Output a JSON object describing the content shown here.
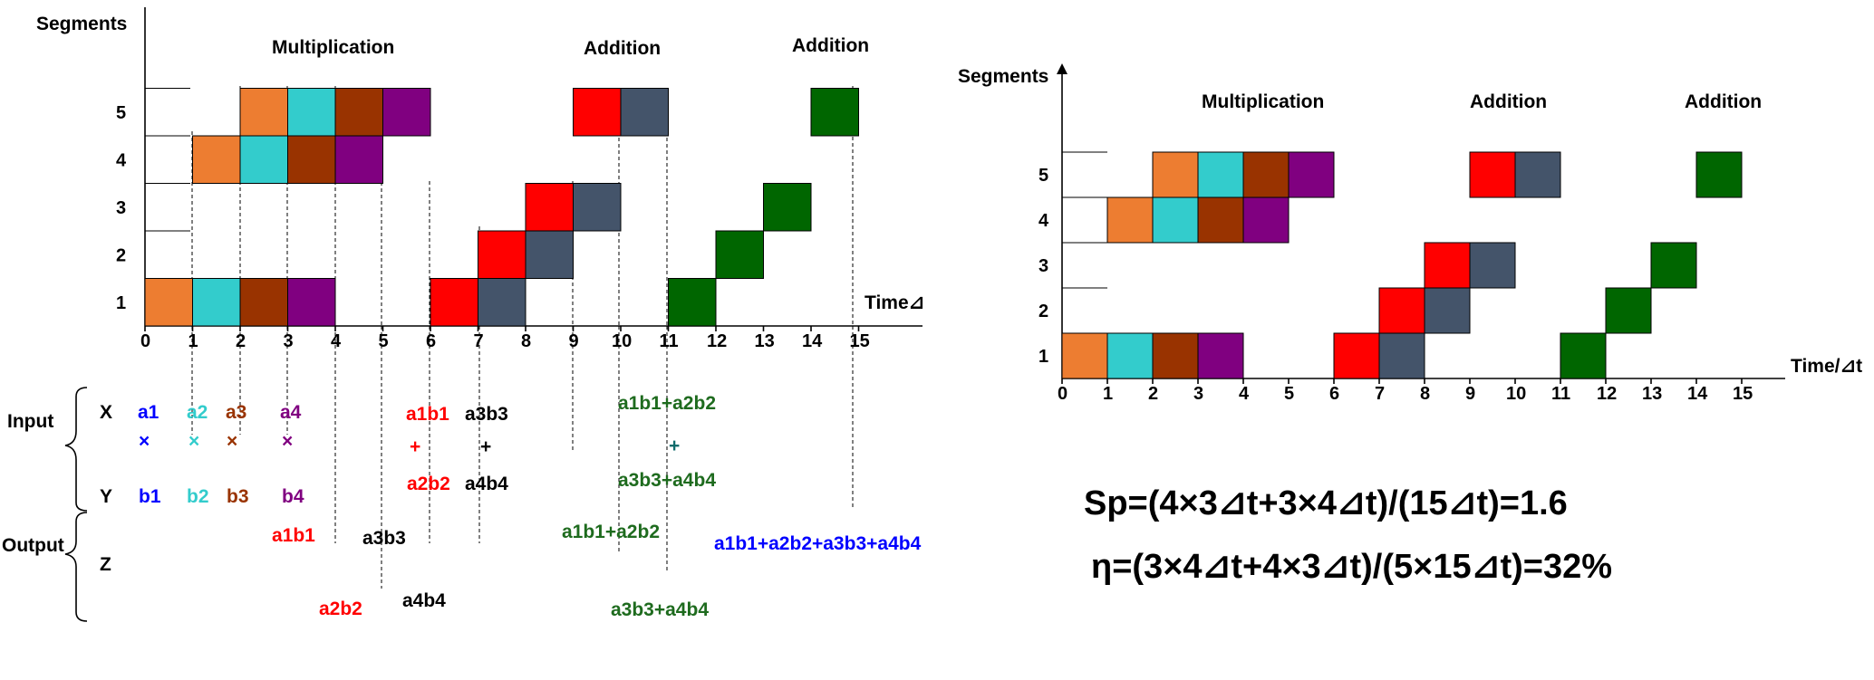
{
  "colors": {
    "orange": "#ED7D31",
    "cyan": "#33CCCC",
    "brown": "#993300",
    "purple": "#800080",
    "red": "#FF0000",
    "slate": "#44546A",
    "green": "#006600",
    "blue": "#0000FF",
    "input_green": "#1E6B1E"
  },
  "left": {
    "y_axis_label": "Segments",
    "x_axis_label": "Time⊿",
    "phase_labels": [
      "Multiplication",
      "Addition",
      "Addition"
    ],
    "segments": [
      "1",
      "2",
      "3",
      "4",
      "5"
    ],
    "times": [
      "0",
      "1",
      "2",
      "3",
      "4",
      "5",
      "6",
      "7",
      "8",
      "9",
      "10",
      "11",
      "12",
      "13",
      "14",
      "15"
    ],
    "cells": [
      {
        "seg": 1,
        "t": 0,
        "color": "orange"
      },
      {
        "seg": 1,
        "t": 1,
        "color": "cyan"
      },
      {
        "seg": 1,
        "t": 2,
        "color": "brown"
      },
      {
        "seg": 1,
        "t": 3,
        "color": "purple"
      },
      {
        "seg": 4,
        "t": 1,
        "color": "orange"
      },
      {
        "seg": 4,
        "t": 2,
        "color": "cyan"
      },
      {
        "seg": 4,
        "t": 3,
        "color": "brown"
      },
      {
        "seg": 4,
        "t": 4,
        "color": "purple"
      },
      {
        "seg": 5,
        "t": 2,
        "color": "orange"
      },
      {
        "seg": 5,
        "t": 3,
        "color": "cyan"
      },
      {
        "seg": 5,
        "t": 4,
        "color": "brown"
      },
      {
        "seg": 5,
        "t": 5,
        "color": "purple"
      },
      {
        "seg": 1,
        "t": 6,
        "color": "red"
      },
      {
        "seg": 1,
        "t": 7,
        "color": "slate"
      },
      {
        "seg": 2,
        "t": 7,
        "color": "red"
      },
      {
        "seg": 2,
        "t": 8,
        "color": "slate"
      },
      {
        "seg": 3,
        "t": 8,
        "color": "red"
      },
      {
        "seg": 3,
        "t": 9,
        "color": "slate"
      },
      {
        "seg": 5,
        "t": 9,
        "color": "red"
      },
      {
        "seg": 5,
        "t": 10,
        "color": "slate"
      },
      {
        "seg": 1,
        "t": 11,
        "color": "green"
      },
      {
        "seg": 2,
        "t": 12,
        "color": "green"
      },
      {
        "seg": 3,
        "t": 13,
        "color": "green"
      },
      {
        "seg": 5,
        "t": 14,
        "color": "green"
      }
    ],
    "group_labels": {
      "input": "Input",
      "output": "Output",
      "x": "X",
      "y": "Y",
      "z": "Z"
    },
    "io": {
      "x_row": [
        {
          "text": "a1",
          "color": "blue"
        },
        {
          "text": "a2",
          "color": "cyan"
        },
        {
          "text": "a3",
          "color": "brown"
        },
        {
          "text": "a4",
          "color": "purple"
        },
        {
          "text": "a1b1",
          "color": "red"
        },
        {
          "text": "a3b3",
          "color": "black"
        },
        {
          "text": "a1b1+a2b2",
          "color": "input_green"
        }
      ],
      "ops": [
        {
          "text": "×",
          "color": "blue"
        },
        {
          "text": "×",
          "color": "cyan"
        },
        {
          "text": "×",
          "color": "brown"
        },
        {
          "text": "×",
          "color": "purple"
        },
        {
          "text": "+",
          "color": "red"
        },
        {
          "text": "+",
          "color": "black"
        },
        {
          "text": "+",
          "color": "#0E6B6B"
        }
      ],
      "y_row": [
        {
          "text": "b1",
          "color": "blue"
        },
        {
          "text": "b2",
          "color": "cyan"
        },
        {
          "text": "b3",
          "color": "brown"
        },
        {
          "text": "b4",
          "color": "purple"
        },
        {
          "text": "a2b2",
          "color": "red"
        },
        {
          "text": "a4b4",
          "color": "black"
        },
        {
          "text": "a3b3+a4b4",
          "color": "input_green"
        }
      ],
      "z_row": [
        {
          "text": "a1b1",
          "color": "red"
        },
        {
          "text": "a3b3",
          "color": "black"
        },
        {
          "text": "a1b1+a2b2",
          "color": "input_green"
        },
        {
          "text": "a1b1+a2b2+a3b3+a4b4",
          "color": "blue"
        },
        {
          "text": "a2b2",
          "color": "red"
        },
        {
          "text": "a4b4",
          "color": "black"
        },
        {
          "text": "a3b3+a4b4",
          "color": "input_green"
        }
      ]
    }
  },
  "right": {
    "y_axis_label": "Segments",
    "x_axis_label": "Time/⊿t",
    "phase_labels": [
      "Multiplication",
      "Addition",
      "Addition"
    ],
    "segments": [
      "1",
      "2",
      "3",
      "4",
      "5"
    ],
    "times": [
      "0",
      "1",
      "2",
      "3",
      "4",
      "5",
      "6",
      "7",
      "8",
      "9",
      "10",
      "11",
      "12",
      "13",
      "14",
      "15"
    ],
    "cells": [
      {
        "seg": 1,
        "t": 0,
        "color": "orange"
      },
      {
        "seg": 1,
        "t": 1,
        "color": "cyan"
      },
      {
        "seg": 1,
        "t": 2,
        "color": "brown"
      },
      {
        "seg": 1,
        "t": 3,
        "color": "purple"
      },
      {
        "seg": 4,
        "t": 1,
        "color": "orange"
      },
      {
        "seg": 4,
        "t": 2,
        "color": "cyan"
      },
      {
        "seg": 4,
        "t": 3,
        "color": "brown"
      },
      {
        "seg": 4,
        "t": 4,
        "color": "purple"
      },
      {
        "seg": 5,
        "t": 2,
        "color": "orange"
      },
      {
        "seg": 5,
        "t": 3,
        "color": "cyan"
      },
      {
        "seg": 5,
        "t": 4,
        "color": "brown"
      },
      {
        "seg": 5,
        "t": 5,
        "color": "purple"
      },
      {
        "seg": 1,
        "t": 6,
        "color": "red"
      },
      {
        "seg": 1,
        "t": 7,
        "color": "slate"
      },
      {
        "seg": 2,
        "t": 7,
        "color": "red"
      },
      {
        "seg": 2,
        "t": 8,
        "color": "slate"
      },
      {
        "seg": 3,
        "t": 8,
        "color": "red"
      },
      {
        "seg": 3,
        "t": 9,
        "color": "slate"
      },
      {
        "seg": 5,
        "t": 9,
        "color": "red"
      },
      {
        "seg": 5,
        "t": 10,
        "color": "slate"
      },
      {
        "seg": 1,
        "t": 11,
        "color": "green"
      },
      {
        "seg": 2,
        "t": 12,
        "color": "green"
      },
      {
        "seg": 3,
        "t": 13,
        "color": "green"
      },
      {
        "seg": 5,
        "t": 14,
        "color": "green"
      }
    ]
  },
  "formulas": {
    "speedup": "Sp=(4×3⊿t+3×4⊿t)/(15⊿t)=1.6",
    "efficiency": "η=(3×4⊿t+4×3⊿t)/(5×15⊿t)=32%"
  }
}
